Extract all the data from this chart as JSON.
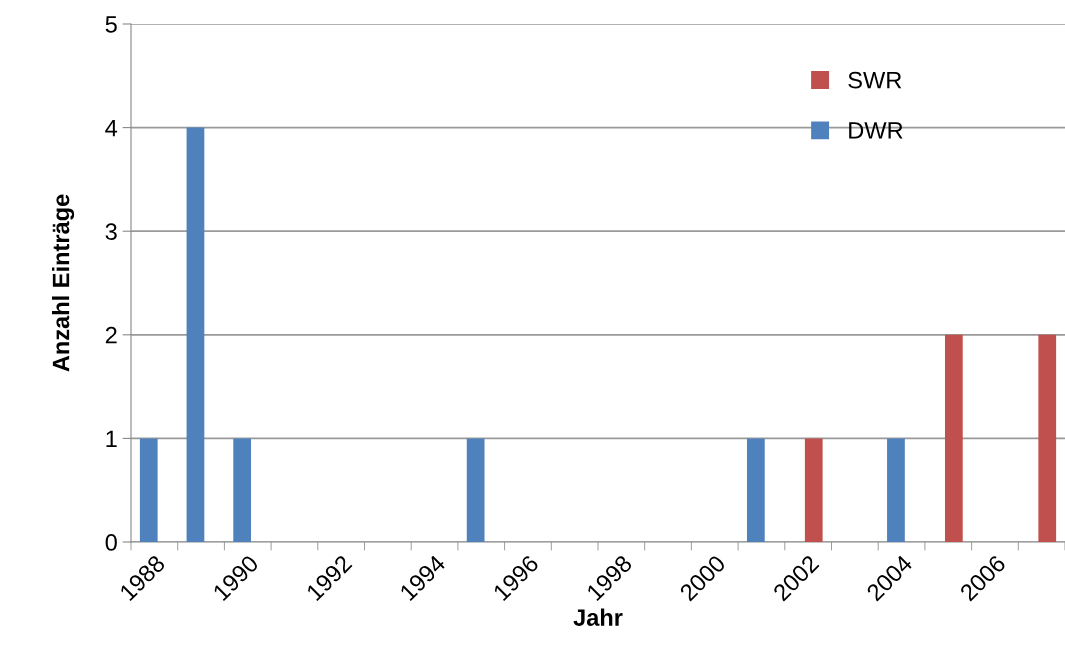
{
  "chart_data": {
    "type": "bar",
    "xlabel": "Jahr",
    "ylabel": "Anzahl Einträge",
    "categories": [
      "1988",
      null,
      "1990",
      null,
      "1992",
      null,
      "1994",
      null,
      "1996",
      null,
      "1998",
      null,
      "2000",
      null,
      "2002",
      null,
      "2004",
      null,
      "2006",
      null
    ],
    "series": [
      {
        "name": "DWR",
        "color": "#4f81bd",
        "values": [
          1,
          4,
          1,
          0,
          0,
          0,
          0,
          1,
          0,
          0,
          0,
          0,
          0,
          1,
          0,
          0,
          1,
          0,
          0,
          0
        ]
      },
      {
        "name": "SWR",
        "color": "#c0504d",
        "values": [
          0,
          0,
          0,
          0,
          0,
          0,
          0,
          0,
          0,
          0,
          0,
          0,
          0,
          0,
          1,
          0,
          0,
          2,
          0,
          2
        ]
      }
    ],
    "ylim": [
      0,
      5
    ],
    "yticks": [
      0,
      1,
      2,
      3,
      4,
      5
    ],
    "grid": "y",
    "legend": "top right"
  }
}
